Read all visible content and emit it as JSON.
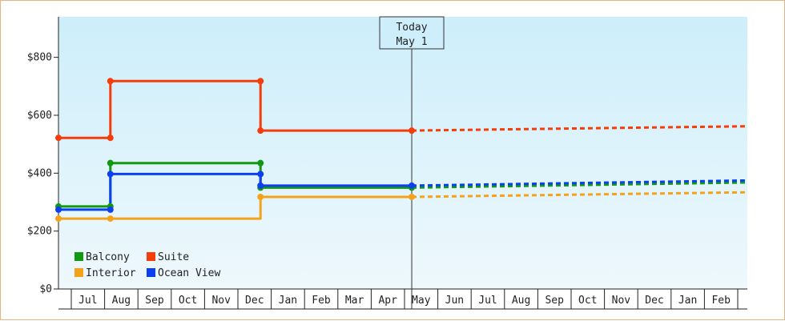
{
  "chart_data": {
    "type": "line",
    "step": true,
    "ylim": [
      0,
      940
    ],
    "y_ticks": [
      0,
      200,
      400,
      600,
      800
    ],
    "y_tick_labels": [
      "$0",
      "$200",
      "$400",
      "$600",
      "$800"
    ],
    "months": [
      "Jul",
      "Aug",
      "Sep",
      "Oct",
      "Nov",
      "Dec",
      "Jan",
      "Feb",
      "Mar",
      "Apr",
      "May",
      "Jun",
      "Jul",
      "Aug",
      "Sep",
      "Oct",
      "Nov",
      "Dec",
      "Jan",
      "Feb"
    ],
    "x_start": "2020-06-15",
    "x_end": "2022-03-01",
    "today": {
      "date": "2021-05-01",
      "line1": "Today",
      "line2": "May 1"
    },
    "series": [
      {
        "name": "Balcony",
        "color": "#129912",
        "points": [
          [
            "2020-06-15",
            285
          ],
          [
            "2020-08-01",
            285
          ],
          [
            "2020-08-01",
            435
          ],
          [
            "2020-12-15",
            435
          ],
          [
            "2020-12-15",
            350
          ],
          [
            "2021-05-01",
            350
          ]
        ],
        "forecast": [
          [
            "2021-05-01",
            350
          ],
          [
            "2022-03-01",
            368
          ]
        ]
      },
      {
        "name": "Suite",
        "color": "#f43d0a",
        "points": [
          [
            "2020-06-15",
            522
          ],
          [
            "2020-08-01",
            522
          ],
          [
            "2020-08-01",
            718
          ],
          [
            "2020-12-15",
            718
          ],
          [
            "2020-12-15",
            547
          ],
          [
            "2021-05-01",
            547
          ]
        ],
        "forecast": [
          [
            "2021-05-01",
            547
          ],
          [
            "2022-03-01",
            562
          ]
        ]
      },
      {
        "name": "Interior",
        "color": "#f5a21b",
        "points": [
          [
            "2020-06-15",
            243
          ],
          [
            "2020-08-01",
            243
          ],
          [
            "2020-08-01",
            243
          ],
          [
            "2020-12-15",
            243
          ],
          [
            "2020-12-15",
            318
          ],
          [
            "2021-05-01",
            318
          ]
        ],
        "forecast": [
          [
            "2021-05-01",
            318
          ],
          [
            "2022-03-01",
            334
          ]
        ]
      },
      {
        "name": "Ocean View",
        "color": "#0b3ff0",
        "points": [
          [
            "2020-06-15",
            274
          ],
          [
            "2020-08-01",
            274
          ],
          [
            "2020-08-01",
            397
          ],
          [
            "2020-12-15",
            397
          ],
          [
            "2020-12-15",
            357
          ],
          [
            "2021-05-01",
            357
          ]
        ],
        "forecast": [
          [
            "2021-05-01",
            357
          ],
          [
            "2022-03-01",
            375
          ]
        ]
      }
    ],
    "markers": [
      {
        "series": "Balcony",
        "points": [
          [
            "2020-06-15",
            285
          ],
          [
            "2020-08-01",
            285
          ],
          [
            "2020-08-01",
            435
          ],
          [
            "2020-12-15",
            435
          ],
          [
            "2020-12-15",
            350
          ],
          [
            "2021-05-01",
            350
          ]
        ]
      },
      {
        "series": "Suite",
        "points": [
          [
            "2020-06-15",
            522
          ],
          [
            "2020-08-01",
            522
          ],
          [
            "2020-08-01",
            718
          ],
          [
            "2020-12-15",
            718
          ],
          [
            "2020-12-15",
            547
          ],
          [
            "2021-05-01",
            547
          ]
        ]
      },
      {
        "series": "Interior",
        "points": [
          [
            "2020-06-15",
            243
          ],
          [
            "2020-08-01",
            243
          ],
          [
            "2020-12-15",
            318
          ],
          [
            "2021-05-01",
            318
          ]
        ]
      },
      {
        "series": "Ocean View",
        "points": [
          [
            "2020-06-15",
            274
          ],
          [
            "2020-08-01",
            274
          ],
          [
            "2020-08-01",
            397
          ],
          [
            "2020-12-15",
            397
          ],
          [
            "2020-12-15",
            357
          ],
          [
            "2021-05-01",
            357
          ]
        ]
      }
    ],
    "legend": {
      "position": "bottom-left",
      "entries": [
        {
          "label": "Balcony",
          "color": "#129912"
        },
        {
          "label": "Suite",
          "color": "#f43d0a"
        },
        {
          "label": "Interior",
          "color": "#f5a21b"
        },
        {
          "label": "Ocean View",
          "color": "#0b3ff0"
        }
      ]
    },
    "grid": false,
    "background_gradient": [
      "#cdeefa",
      "#eef8fd"
    ]
  }
}
